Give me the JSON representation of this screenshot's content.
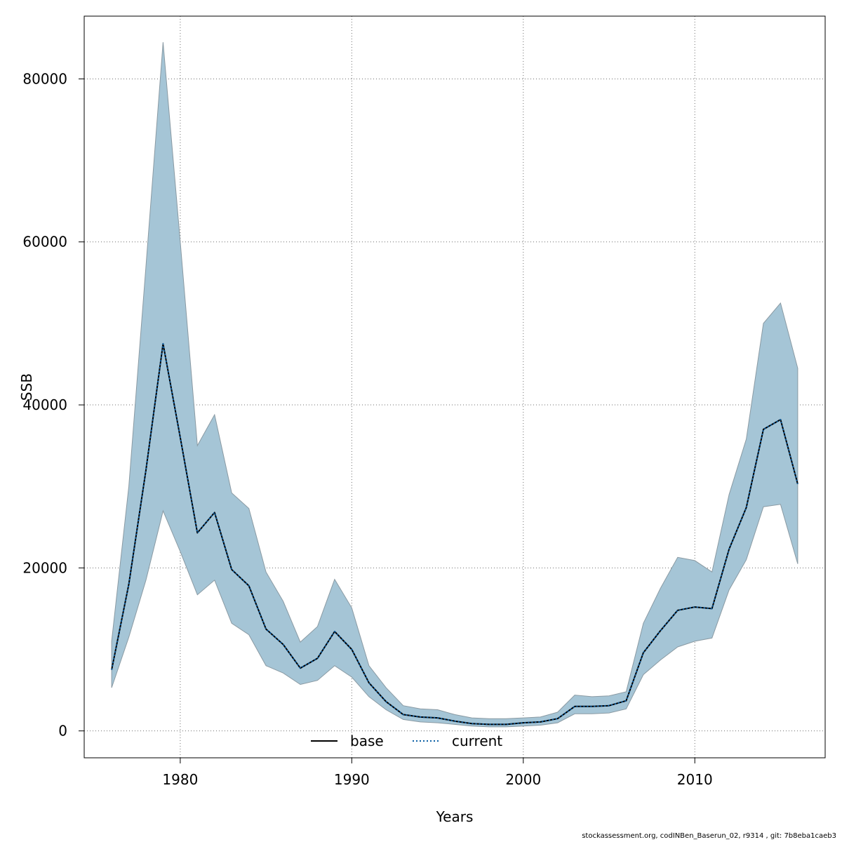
{
  "chart_data": {
    "type": "line",
    "xlabel": "Years",
    "ylabel": "SSB",
    "xlim": [
      1974.4,
      2017.6
    ],
    "ylim": [
      -3300,
      87700
    ],
    "x_ticks": [
      1980,
      1990,
      2000,
      2010
    ],
    "y_ticks": [
      0,
      20000,
      40000,
      60000,
      80000
    ],
    "grid": true,
    "legend_placement": "bottom-center",
    "band_color": "#A5C5D6",
    "band_edge_color": "#8A9AA3",
    "x": [
      1976,
      1977,
      1978,
      1979,
      1980,
      1981,
      1982,
      1983,
      1984,
      1985,
      1986,
      1987,
      1988,
      1989,
      1990,
      1991,
      1992,
      1993,
      1994,
      1995,
      1996,
      1997,
      1998,
      1999,
      2000,
      2001,
      2002,
      2003,
      2004,
      2005,
      2006,
      2007,
      2008,
      2009,
      2010,
      2011,
      2012,
      2013,
      2014,
      2015,
      2016
    ],
    "band_upper": [
      11000,
      30000,
      57000,
      84500,
      60000,
      35000,
      38800,
      29200,
      27300,
      19500,
      15900,
      10900,
      12800,
      18600,
      15100,
      8000,
      5300,
      3100,
      2700,
      2600,
      2000,
      1600,
      1500,
      1500,
      1600,
      1700,
      2300,
      4400,
      4200,
      4300,
      4800,
      13200,
      17500,
      21300,
      20900,
      19500,
      29000,
      35800,
      50000,
      52500,
      44500
    ],
    "band_lower": [
      5300,
      11500,
      18500,
      27000,
      22000,
      16700,
      18500,
      13200,
      11800,
      8000,
      7100,
      5700,
      6200,
      8000,
      6600,
      4200,
      2600,
      1400,
      1100,
      1000,
      800,
      600,
      500,
      500,
      600,
      700,
      1000,
      2100,
      2100,
      2200,
      2700,
      6900,
      8700,
      10300,
      11000,
      11400,
      17300,
      21000,
      27500,
      27800,
      20500
    ],
    "series": [
      {
        "name": "base",
        "style": "solid",
        "color": "#000000",
        "values": [
          7500,
          18000,
          32000,
          47500,
          36000,
          24300,
          26800,
          19800,
          17800,
          12500,
          10600,
          7700,
          8900,
          12200,
          10000,
          5900,
          3600,
          2000,
          1700,
          1600,
          1200,
          900,
          800,
          800,
          1000,
          1100,
          1500,
          3000,
          3000,
          3100,
          3700,
          9600,
          12300,
          14800,
          15200,
          15000,
          22300,
          27400,
          37000,
          38200,
          30300
        ]
      },
      {
        "name": "current",
        "style": "dotted",
        "color": "#0B5FA5",
        "values": [
          7500,
          18000,
          32000,
          47500,
          36000,
          24300,
          26800,
          19800,
          17800,
          12500,
          10600,
          7700,
          8900,
          12200,
          10000,
          5900,
          3600,
          2000,
          1700,
          1600,
          1200,
          900,
          800,
          800,
          1000,
          1100,
          1500,
          3000,
          3000,
          3100,
          3700,
          9600,
          12300,
          14800,
          15200,
          15000,
          22300,
          27400,
          37000,
          38200,
          30300
        ]
      }
    ]
  },
  "footer": {
    "text": "stockassessment.org, codINBen_Baserun_02, r9314 , git: 7b8eba1caeb3"
  }
}
